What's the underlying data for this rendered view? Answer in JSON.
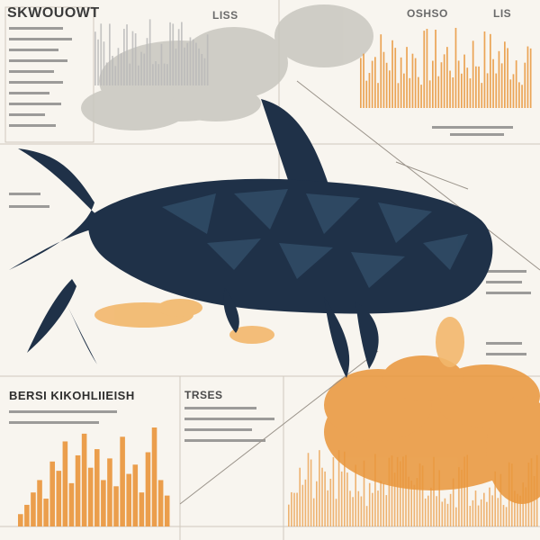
{
  "header": {
    "top_left_heading": "SKWOUOWT",
    "top_center_heading": "LISS",
    "top_right_heading_1": "OSHSO",
    "top_right_heading_2": "LIS"
  },
  "lower_left": {
    "subheading": "BERSI KIKOHLIIEISH",
    "small_heading": "TRSES"
  },
  "colors": {
    "whale": "#1f3148",
    "whale_light": "#33506b",
    "orange": "#e9953a",
    "orange_light": "#f2b76b",
    "gray": "#b8b8b8",
    "paper": "#f8f5ef"
  },
  "chart_data": {
    "type": "bar",
    "title": "",
    "xlabel": "",
    "ylabel": "",
    "series": [
      {
        "values": [
          8,
          14,
          22,
          30,
          18,
          42,
          36,
          55,
          28,
          46,
          60,
          38,
          50,
          30,
          44,
          26,
          58,
          34,
          40,
          22,
          48,
          64,
          30,
          20
        ]
      }
    ]
  }
}
